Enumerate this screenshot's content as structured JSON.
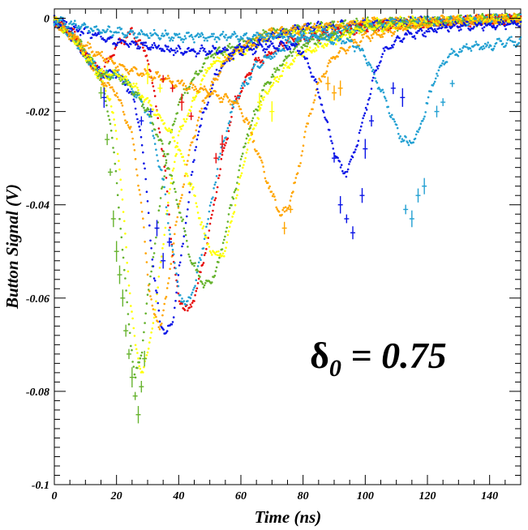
{
  "chart_data": {
    "type": "line",
    "title": "",
    "xlabel": "Time (ns)",
    "ylabel": "Button Signal (V)",
    "xlim": [
      0,
      150
    ],
    "ylim": [
      -0.1,
      0.002
    ],
    "x_ticks": [
      0,
      20,
      40,
      60,
      80,
      100,
      120,
      140
    ],
    "y_ticks": [
      0,
      -0.02,
      -0.04,
      -0.06,
      -0.08,
      -0.1
    ],
    "x_tick_labels": [
      "0",
      "20",
      "40",
      "60",
      "80",
      "100",
      "120",
      "140"
    ],
    "y_tick_labels": [
      "0",
      "-0.02",
      "-0.04",
      "-0.06",
      "-0.08",
      "-0.1"
    ],
    "grid": false,
    "legend": "none",
    "annotation": {
      "symbol": "δ",
      "subscript": "0",
      "text": " = 0.75"
    },
    "series": [
      {
        "color": "#66b32e",
        "values": [
          [
            0,
            -0.0005
          ],
          [
            5,
            -0.003
          ],
          [
            10,
            -0.007
          ],
          [
            15,
            -0.013
          ],
          [
            18,
            -0.022
          ],
          [
            20,
            -0.035
          ],
          [
            22,
            -0.05
          ],
          [
            24,
            -0.066
          ],
          [
            26,
            -0.077
          ],
          [
            28,
            -0.072
          ],
          [
            30,
            -0.06
          ],
          [
            33,
            -0.045
          ],
          [
            36,
            -0.03
          ],
          [
            40,
            -0.018
          ],
          [
            50,
            -0.008
          ],
          [
            70,
            -0.003
          ],
          [
            100,
            -0.001
          ],
          [
            150,
            0
          ]
        ]
      },
      {
        "color": "#ffff00",
        "values": [
          [
            0,
            -0.0005
          ],
          [
            6,
            -0.004
          ],
          [
            10,
            -0.008
          ],
          [
            15,
            -0.013
          ],
          [
            18,
            -0.018
          ],
          [
            20,
            -0.025
          ],
          [
            22,
            -0.04
          ],
          [
            24,
            -0.057
          ],
          [
            26,
            -0.07
          ],
          [
            28,
            -0.076
          ],
          [
            30,
            -0.072
          ],
          [
            33,
            -0.06
          ],
          [
            36,
            -0.042
          ],
          [
            40,
            -0.025
          ],
          [
            50,
            -0.01
          ],
          [
            70,
            -0.004
          ],
          [
            100,
            -0.001
          ],
          [
            150,
            0
          ]
        ]
      },
      {
        "color": "#0a14e6",
        "values": [
          [
            0,
            -0.0005
          ],
          [
            6,
            -0.004
          ],
          [
            10,
            -0.008
          ],
          [
            15,
            -0.012
          ],
          [
            20,
            -0.012
          ],
          [
            25,
            -0.016
          ],
          [
            28,
            -0.025
          ],
          [
            30,
            -0.04
          ],
          [
            32,
            -0.055
          ],
          [
            34,
            -0.065
          ],
          [
            36,
            -0.068
          ],
          [
            38,
            -0.065
          ],
          [
            40,
            -0.055
          ],
          [
            43,
            -0.04
          ],
          [
            46,
            -0.025
          ],
          [
            52,
            -0.012
          ],
          [
            60,
            -0.006
          ],
          [
            80,
            -0.002
          ],
          [
            110,
            -0.001
          ],
          [
            150,
            0
          ]
        ]
      },
      {
        "color": "#ffa500",
        "values": [
          [
            0,
            -0.0005
          ],
          [
            6,
            -0.004
          ],
          [
            10,
            -0.008
          ],
          [
            15,
            -0.013
          ],
          [
            20,
            -0.016
          ],
          [
            25,
            -0.025
          ],
          [
            28,
            -0.04
          ],
          [
            30,
            -0.055
          ],
          [
            32,
            -0.064
          ],
          [
            34,
            -0.066
          ],
          [
            36,
            -0.06
          ],
          [
            39,
            -0.045
          ],
          [
            43,
            -0.03
          ],
          [
            48,
            -0.018
          ],
          [
            56,
            -0.008
          ],
          [
            70,
            -0.003
          ],
          [
            100,
            -0.001
          ],
          [
            150,
            0
          ]
        ]
      },
      {
        "color": "#e60a0a",
        "values": [
          [
            0,
            -0.0005
          ],
          [
            6,
            -0.003
          ],
          [
            10,
            -0.008
          ],
          [
            15,
            -0.012
          ],
          [
            20,
            -0.006
          ],
          [
            25,
            -0.003
          ],
          [
            30,
            -0.008
          ],
          [
            33,
            -0.02
          ],
          [
            36,
            -0.035
          ],
          [
            38,
            -0.05
          ],
          [
            40,
            -0.06
          ],
          [
            43,
            -0.063
          ],
          [
            46,
            -0.058
          ],
          [
            50,
            -0.045
          ],
          [
            54,
            -0.03
          ],
          [
            58,
            -0.018
          ],
          [
            64,
            -0.01
          ],
          [
            75,
            -0.005
          ],
          [
            100,
            -0.002
          ],
          [
            150,
            0
          ]
        ]
      },
      {
        "color": "#22a0d2",
        "values": [
          [
            0,
            -0.0005
          ],
          [
            6,
            -0.004
          ],
          [
            10,
            -0.008
          ],
          [
            15,
            -0.012
          ],
          [
            20,
            -0.012
          ],
          [
            25,
            -0.015
          ],
          [
            30,
            -0.02
          ],
          [
            35,
            -0.035
          ],
          [
            38,
            -0.05
          ],
          [
            40,
            -0.058
          ],
          [
            42,
            -0.062
          ],
          [
            45,
            -0.058
          ],
          [
            49,
            -0.045
          ],
          [
            53,
            -0.03
          ],
          [
            58,
            -0.018
          ],
          [
            65,
            -0.01
          ],
          [
            80,
            -0.004
          ],
          [
            110,
            -0.001
          ],
          [
            150,
            0
          ]
        ]
      },
      {
        "color": "#66b32e",
        "values": [
          [
            0,
            -0.0005
          ],
          [
            6,
            -0.004
          ],
          [
            10,
            -0.008
          ],
          [
            15,
            -0.012
          ],
          [
            20,
            -0.012
          ],
          [
            25,
            -0.015
          ],
          [
            30,
            -0.02
          ],
          [
            35,
            -0.028
          ],
          [
            40,
            -0.04
          ],
          [
            44,
            -0.052
          ],
          [
            48,
            -0.057
          ],
          [
            50,
            -0.057
          ],
          [
            53,
            -0.052
          ],
          [
            57,
            -0.04
          ],
          [
            62,
            -0.025
          ],
          [
            68,
            -0.014
          ],
          [
            78,
            -0.006
          ],
          [
            100,
            -0.002
          ],
          [
            150,
            0
          ]
        ]
      },
      {
        "color": "#ffff00",
        "values": [
          [
            0,
            -0.0005
          ],
          [
            6,
            -0.004
          ],
          [
            10,
            -0.008
          ],
          [
            15,
            -0.012
          ],
          [
            20,
            -0.012
          ],
          [
            25,
            -0.014
          ],
          [
            30,
            -0.018
          ],
          [
            35,
            -0.022
          ],
          [
            40,
            -0.028
          ],
          [
            45,
            -0.038
          ],
          [
            49,
            -0.048
          ],
          [
            52,
            -0.051
          ],
          [
            55,
            -0.05
          ],
          [
            58,
            -0.04
          ],
          [
            62,
            -0.028
          ],
          [
            68,
            -0.016
          ],
          [
            78,
            -0.008
          ],
          [
            100,
            -0.002
          ],
          [
            150,
            0
          ]
        ]
      },
      {
        "color": "#ffa500",
        "values": [
          [
            0,
            -0.0005
          ],
          [
            10,
            -0.006
          ],
          [
            20,
            -0.01
          ],
          [
            30,
            -0.012
          ],
          [
            40,
            -0.014
          ],
          [
            50,
            -0.016
          ],
          [
            58,
            -0.018
          ],
          [
            62,
            -0.022
          ],
          [
            66,
            -0.03
          ],
          [
            70,
            -0.038
          ],
          [
            73,
            -0.042
          ],
          [
            75,
            -0.041
          ],
          [
            78,
            -0.034
          ],
          [
            81,
            -0.024
          ],
          [
            85,
            -0.014
          ],
          [
            90,
            -0.008
          ],
          [
            100,
            -0.004
          ],
          [
            120,
            -0.001
          ],
          [
            150,
            0
          ]
        ]
      },
      {
        "color": "#0a14e6",
        "values": [
          [
            0,
            -0.0005
          ],
          [
            10,
            -0.003
          ],
          [
            20,
            -0.005
          ],
          [
            30,
            -0.006
          ],
          [
            40,
            -0.007
          ],
          [
            50,
            -0.007
          ],
          [
            60,
            -0.007
          ],
          [
            70,
            -0.006
          ],
          [
            78,
            -0.006
          ],
          [
            82,
            -0.01
          ],
          [
            86,
            -0.018
          ],
          [
            89,
            -0.026
          ],
          [
            92,
            -0.032
          ],
          [
            94,
            -0.033
          ],
          [
            97,
            -0.028
          ],
          [
            100,
            -0.02
          ],
          [
            103,
            -0.012
          ],
          [
            106,
            -0.007
          ],
          [
            112,
            -0.004
          ],
          [
            125,
            -0.002
          ],
          [
            150,
            -0.001
          ]
        ]
      },
      {
        "color": "#22a0d2",
        "values": [
          [
            0,
            -0.0005
          ],
          [
            10,
            -0.002
          ],
          [
            20,
            -0.003
          ],
          [
            40,
            -0.004
          ],
          [
            60,
            -0.004
          ],
          [
            80,
            -0.004
          ],
          [
            95,
            -0.005
          ],
          [
            100,
            -0.008
          ],
          [
            104,
            -0.014
          ],
          [
            108,
            -0.02
          ],
          [
            111,
            -0.025
          ],
          [
            114,
            -0.027
          ],
          [
            117,
            -0.025
          ],
          [
            120,
            -0.018
          ],
          [
            123,
            -0.012
          ],
          [
            127,
            -0.008
          ],
          [
            133,
            -0.006
          ],
          [
            140,
            -0.006
          ],
          [
            145,
            -0.005
          ],
          [
            150,
            -0.005
          ]
        ]
      }
    ],
    "error_bar_clusters": [
      {
        "color": "#66b32e",
        "values": [
          [
            15,
            -0.016
          ],
          [
            17,
            -0.026
          ],
          [
            18,
            -0.033
          ],
          [
            19,
            -0.043
          ],
          [
            20,
            -0.05
          ],
          [
            21,
            -0.055
          ],
          [
            22,
            -0.06
          ],
          [
            23,
            -0.067
          ],
          [
            24,
            -0.072
          ],
          [
            25,
            -0.077
          ],
          [
            26,
            -0.081
          ],
          [
            27,
            -0.085
          ],
          [
            28,
            -0.079
          ],
          [
            29,
            -0.073
          ]
        ]
      },
      {
        "color": "#0a14e6",
        "values": [
          [
            16,
            -0.017
          ],
          [
            28,
            -0.022
          ],
          [
            31,
            -0.02
          ],
          [
            33,
            -0.045
          ],
          [
            35,
            -0.052
          ],
          [
            37,
            -0.048
          ],
          [
            90,
            -0.03
          ],
          [
            92,
            -0.04
          ],
          [
            94,
            -0.043
          ],
          [
            96,
            -0.046
          ],
          [
            99,
            -0.038
          ],
          [
            100,
            -0.028
          ],
          [
            102,
            -0.022
          ],
          [
            109,
            -0.015
          ],
          [
            112,
            -0.017
          ]
        ]
      },
      {
        "color": "#ffa500",
        "values": [
          [
            74,
            -0.045
          ],
          [
            76,
            -0.041
          ],
          [
            88,
            -0.014
          ],
          [
            90,
            -0.016
          ],
          [
            92,
            -0.015
          ]
        ]
      },
      {
        "color": "#22a0d2",
        "values": [
          [
            113,
            -0.041
          ],
          [
            115,
            -0.043
          ],
          [
            117,
            -0.038
          ],
          [
            119,
            -0.036
          ],
          [
            123,
            -0.02
          ],
          [
            125,
            -0.018
          ],
          [
            128,
            -0.014
          ]
        ]
      },
      {
        "color": "#e60a0a",
        "values": [
          [
            35,
            -0.013
          ],
          [
            38,
            -0.015
          ],
          [
            41,
            -0.018
          ],
          [
            44,
            -0.021
          ],
          [
            52,
            -0.03
          ],
          [
            54,
            -0.027
          ]
        ]
      },
      {
        "color": "#ffff00",
        "values": [
          [
            30,
            -0.012
          ],
          [
            34,
            -0.015
          ],
          [
            66,
            -0.018
          ],
          [
            70,
            -0.02
          ]
        ]
      }
    ]
  }
}
